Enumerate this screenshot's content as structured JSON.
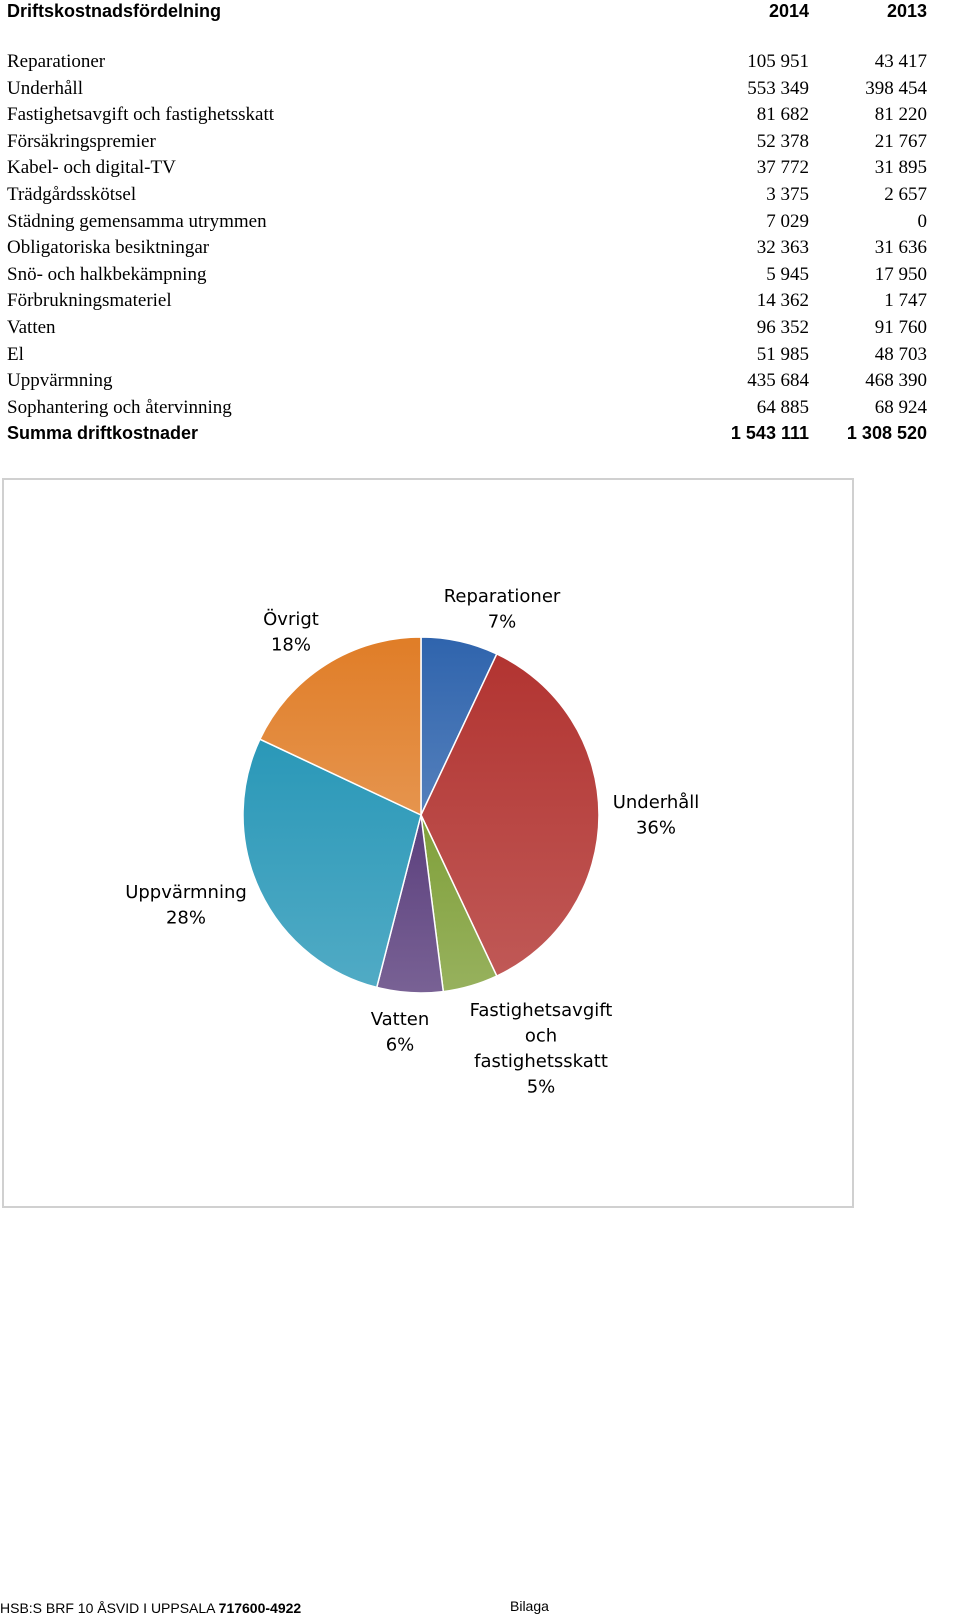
{
  "table": {
    "title": "Driftskostnadsfördelning",
    "col_2014": "2014",
    "col_2013": "2013",
    "rows": [
      {
        "label": "Reparationer",
        "v2014": "105 951",
        "v2013": "43 417"
      },
      {
        "label": "Underhåll",
        "v2014": "553 349",
        "v2013": "398 454"
      },
      {
        "label": "Fastighetsavgift och fastighetsskatt",
        "v2014": "81 682",
        "v2013": "81 220"
      },
      {
        "label": "Försäkringspremier",
        "v2014": "52 378",
        "v2013": "21 767"
      },
      {
        "label": "Kabel- och digital-TV",
        "v2014": "37 772",
        "v2013": "31 895"
      },
      {
        "label": "Trädgårdsskötsel",
        "v2014": "3 375",
        "v2013": "2 657"
      },
      {
        "label": "Städning gemensamma utrymmen",
        "v2014": "7 029",
        "v2013": "0"
      },
      {
        "label": "Obligatoriska besiktningar",
        "v2014": "32 363",
        "v2013": "31 636"
      },
      {
        "label": "Snö- och halkbekämpning",
        "v2014": "5 945",
        "v2013": "17 950"
      },
      {
        "label": "Förbrukningsmateriel",
        "v2014": "14 362",
        "v2013": "1 747"
      },
      {
        "label": "Vatten",
        "v2014": "96 352",
        "v2013": "91 760"
      },
      {
        "label": "El",
        "v2014": "51 985",
        "v2013": "48 703"
      },
      {
        "label": "Uppvärmning",
        "v2014": "435 684",
        "v2013": "468 390"
      },
      {
        "label": "Sophantering och återvinning",
        "v2014": "64 885",
        "v2013": "68 924"
      }
    ],
    "total": {
      "label": "Summa driftkostnader",
      "v2014": "1 543 111",
      "v2013": "1 308 520"
    }
  },
  "chart_data": {
    "type": "pie",
    "slices": [
      {
        "label_lines": [
          "Reparationer"
        ],
        "percent_text": "7%",
        "value": 7,
        "color": "#2f64ad"
      },
      {
        "label_lines": [
          "Underhåll"
        ],
        "percent_text": "36%",
        "value": 36,
        "color": "#b23431"
      },
      {
        "label_lines": [
          "Fastighetsavgift",
          "och",
          "fastighetsskatt"
        ],
        "percent_text": "5%",
        "value": 5,
        "color": "#80a03a"
      },
      {
        "label_lines": [
          "Vatten"
        ],
        "percent_text": "6%",
        "value": 6,
        "color": "#5b3f7d"
      },
      {
        "label_lines": [
          "Uppvärmning"
        ],
        "percent_text": "28%",
        "value": 28,
        "color": "#2a98b8"
      },
      {
        "label_lines": [
          "Övrigt"
        ],
        "percent_text": "18%",
        "value": 18,
        "color": "#e07d27"
      }
    ]
  },
  "footer": {
    "org": "HSB:S BRF 10 ÅSVID I UPPSALA",
    "orgnr": "717600-4922",
    "right": "Bilaga"
  }
}
